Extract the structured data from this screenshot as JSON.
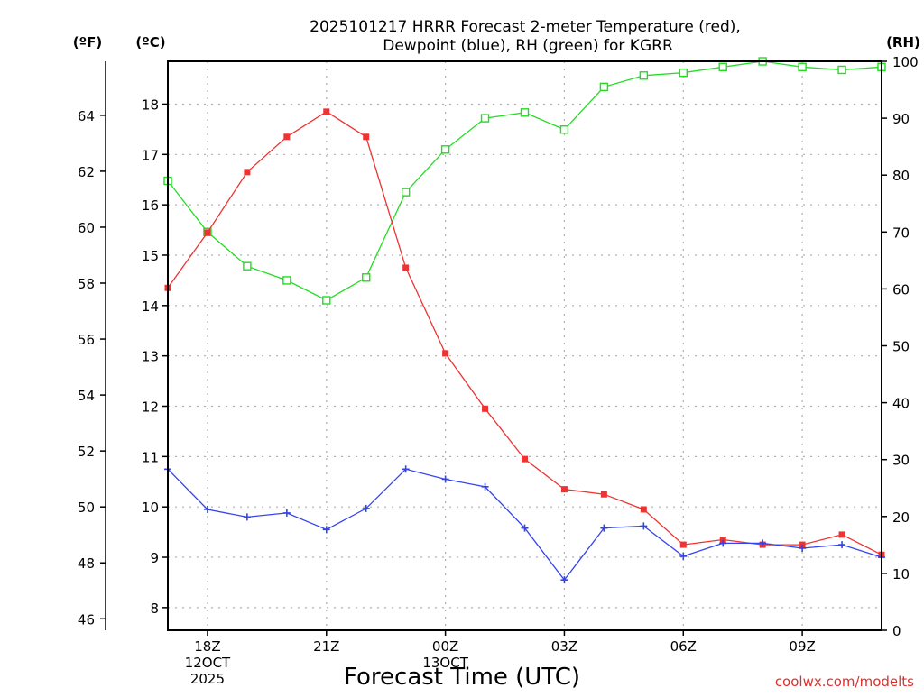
{
  "chart_data": {
    "type": "line",
    "title": [
      "2025101217 HRRR Forecast 2-meter Temperature (red),",
      "Dewpoint (blue), RH (green) for KGRR"
    ],
    "xlabel": "Forecast Time (UTC)",
    "credit": "coolwx.com/modelts",
    "left_outer_axis": {
      "label": "(ºF)",
      "ticks": [
        46,
        48,
        50,
        52,
        54,
        56,
        58,
        60,
        62,
        64
      ]
    },
    "left_axis": {
      "label": "(ºC)",
      "ylim": [
        7.55,
        18.85
      ],
      "ticks": [
        8,
        9,
        10,
        11,
        12,
        13,
        14,
        15,
        16,
        17,
        18
      ]
    },
    "right_axis": {
      "label": "(RH)",
      "ylim": [
        0,
        100
      ],
      "ticks": [
        0,
        10,
        20,
        30,
        40,
        50,
        60,
        70,
        80,
        90,
        100
      ]
    },
    "x": [
      17,
      18,
      19,
      20,
      21,
      22,
      23,
      24,
      25,
      26,
      27,
      28,
      29,
      30,
      31,
      32,
      33,
      34,
      35
    ],
    "xlim": [
      17,
      35
    ],
    "x_ticks": [
      {
        "x": 18,
        "lines": [
          "18Z",
          "12OCT",
          "2025"
        ]
      },
      {
        "x": 21,
        "lines": [
          "21Z"
        ]
      },
      {
        "x": 24,
        "lines": [
          "00Z",
          "13OCT"
        ]
      },
      {
        "x": 27,
        "lines": [
          "03Z"
        ]
      },
      {
        "x": 30,
        "lines": [
          "06Z"
        ]
      },
      {
        "x": 33,
        "lines": [
          "09Z"
        ]
      }
    ],
    "series": [
      {
        "name": "2-meter Temperature",
        "axis": "celsius",
        "color": "#ee3333",
        "marker": "filled-square",
        "values": [
          14.35,
          15.45,
          16.65,
          17.35,
          17.85,
          17.35,
          14.75,
          13.05,
          11.95,
          10.95,
          10.35,
          10.25,
          9.95,
          9.25,
          9.35,
          9.25,
          9.25,
          9.45,
          9.05
        ]
      },
      {
        "name": "Dewpoint",
        "axis": "celsius",
        "color": "#3344ee",
        "marker": "plus",
        "values": [
          10.75,
          9.95,
          9.8,
          9.88,
          9.55,
          9.97,
          10.75,
          10.55,
          10.4,
          9.58,
          8.55,
          9.58,
          9.62,
          9.02,
          9.28,
          9.28,
          9.18,
          9.25,
          9.0
        ]
      },
      {
        "name": "Relative Humidity",
        "axis": "rh",
        "color": "#22dd22",
        "marker": "open-square",
        "values": [
          79,
          70,
          64,
          61.5,
          58,
          62,
          77,
          84.5,
          90,
          91,
          88,
          95.5,
          97.5,
          98,
          99,
          100,
          99,
          98.5,
          99
        ]
      }
    ]
  }
}
